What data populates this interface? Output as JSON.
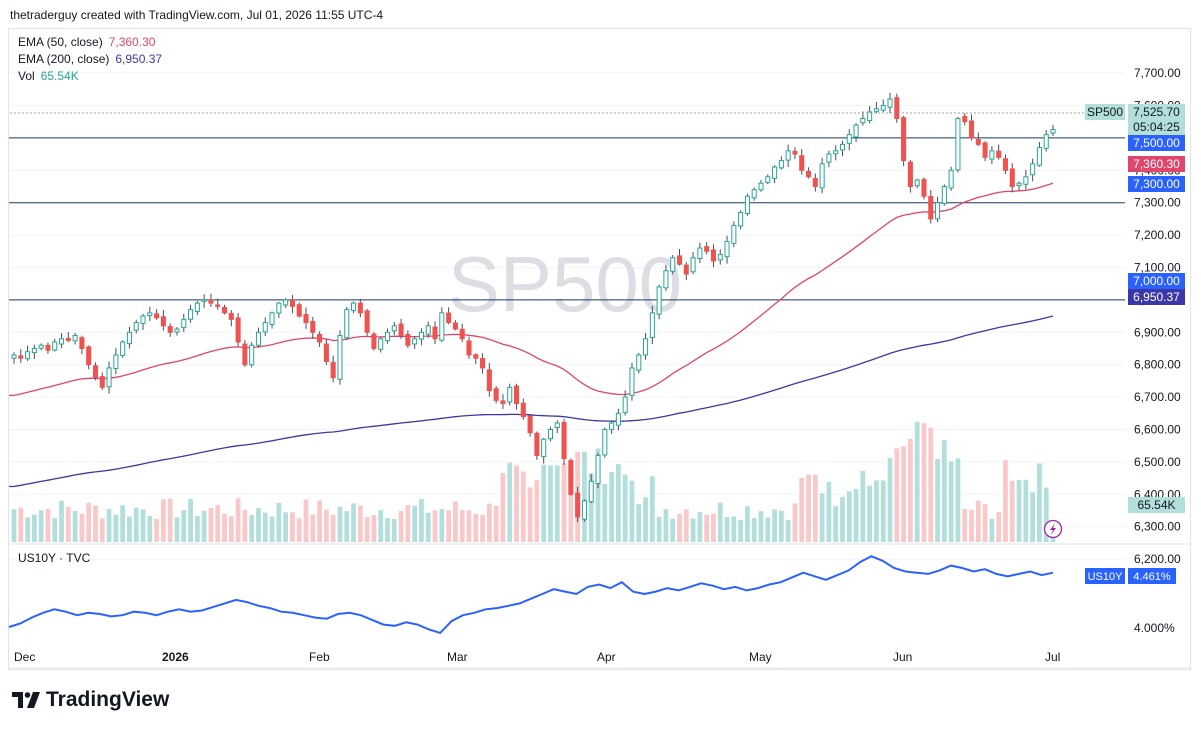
{
  "header": {
    "credit": "thetraderguy created with TradingView.com, Jul 01, 2026 11:55 UTC-4"
  },
  "legend": {
    "ema50": {
      "label": "EMA (50, close)",
      "value": "7,360.30",
      "color": "#e0456b"
    },
    "ema200": {
      "label": "EMA (200, close)",
      "value": "6,950.37",
      "color": "#3c37a8"
    },
    "vol": {
      "label": "Vol",
      "value": "65.54K",
      "color": "#26a69a"
    }
  },
  "watermark": "SP500",
  "lower_pane": {
    "title": "US10Y · TVC",
    "symbol": "US10Y",
    "value": "4.461%",
    "axis_label": "4.000%"
  },
  "price_badges": {
    "symbol": "SP500",
    "last": "7,525.70",
    "countdown": "05:04:25",
    "level_7500": "7,500.00",
    "ema50": "7,360.30",
    "level_7300": "7,300.00",
    "level_7000": "7,000.00",
    "ema200": "6,950.37",
    "volume": "65.54K"
  },
  "logo_text": "TradingView",
  "colors": {
    "up": "#26a69a",
    "down": "#ef5350",
    "ema50": "#e0456b",
    "ema200": "#3c37a8",
    "hline": "#1e3a5f",
    "us10y": "#2962ff"
  },
  "chart_data": [
    {
      "type": "candlestick",
      "title": "SP500",
      "x_tick_labels": [
        "Dec",
        "2026",
        "Feb",
        "Mar",
        "Apr",
        "May",
        "Jun",
        "Jul"
      ],
      "y_tick_labels": [
        "7,700.00",
        "7,600.00",
        "7,500.00",
        "7,400.00",
        "7,300.00",
        "7,200.00",
        "7,100.00",
        "7,000.00",
        "6,900.00",
        "6,800.00",
        "6,700.00",
        "6,600.00",
        "6,500.00",
        "6,400.00",
        "6,300.00",
        "6,200.00"
      ],
      "ylim": [
        6200,
        7750
      ],
      "horizontal_levels": [
        7500,
        7300,
        7000
      ],
      "closes": [
        6830,
        6820,
        6840,
        6850,
        6860,
        6845,
        6870,
        6880,
        6875,
        6890,
        6850,
        6800,
        6760,
        6730,
        6790,
        6830,
        6870,
        6900,
        6930,
        6950,
        6960,
        6945,
        6920,
        6900,
        6910,
        6940,
        6970,
        6990,
        7000,
        6990,
        6980,
        6960,
        6940,
        6870,
        6800,
        6860,
        6900,
        6930,
        6960,
        6990,
        7000,
        6980,
        6950,
        6930,
        6900,
        6870,
        6810,
        6760,
        6890,
        6970,
        6990,
        6960,
        6900,
        6850,
        6880,
        6900,
        6920,
        6890,
        6860,
        6880,
        6900,
        6920,
        6880,
        6960,
        6930,
        6910,
        6880,
        6830,
        6820,
        6790,
        6720,
        6690,
        6680,
        6730,
        6680,
        6640,
        6590,
        6520,
        6570,
        6600,
        6620,
        6510,
        6400,
        6330,
        6380,
        6440,
        6520,
        6600,
        6620,
        6650,
        6700,
        6790,
        6830,
        6880,
        6960,
        7040,
        7090,
        7130,
        7110,
        7080,
        7130,
        7160,
        7150,
        7120,
        7140,
        7180,
        7230,
        7270,
        7320,
        7340,
        7360,
        7380,
        7410,
        7430,
        7460,
        7450,
        7400,
        7380,
        7350,
        7420,
        7450,
        7460,
        7480,
        7510,
        7540,
        7560,
        7580,
        7590,
        7600,
        7620,
        7560,
        7430,
        7350,
        7370,
        7320,
        7250,
        7300,
        7350,
        7400,
        7560,
        7550,
        7500,
        7480,
        7440,
        7460,
        7440,
        7400,
        7350,
        7360,
        7380,
        7420,
        7470,
        7510,
        7526
      ],
      "ema50_end": 7360.3,
      "ema200_end": 6950.37,
      "volume_last": "65.54K"
    },
    {
      "type": "line",
      "title": "US10Y · TVC",
      "series": [
        {
          "name": "US10Y",
          "values": [
            4.0,
            4.03,
            4.08,
            4.12,
            4.15,
            4.13,
            4.1,
            4.12,
            4.11,
            4.09,
            4.1,
            4.13,
            4.12,
            4.1,
            4.13,
            4.15,
            4.13,
            4.14,
            4.17,
            4.2,
            4.23,
            4.21,
            4.18,
            4.16,
            4.13,
            4.12,
            4.1,
            4.08,
            4.07,
            4.11,
            4.12,
            4.1,
            4.06,
            4.02,
            4.01,
            4.04,
            4.02,
            3.98,
            3.95,
            4.05,
            4.1,
            4.12,
            4.15,
            4.16,
            4.18,
            4.2,
            4.24,
            4.28,
            4.32,
            4.3,
            4.28,
            4.34,
            4.36,
            4.33,
            4.38,
            4.3,
            4.28,
            4.3,
            4.33,
            4.31,
            4.34,
            4.37,
            4.35,
            4.32,
            4.34,
            4.31,
            4.33,
            4.36,
            4.38,
            4.42,
            4.46,
            4.43,
            4.4,
            4.44,
            4.48,
            4.55,
            4.6,
            4.56,
            4.5,
            4.47,
            4.46,
            4.45,
            4.48,
            4.52,
            4.5,
            4.47,
            4.49,
            4.45,
            4.43,
            4.45,
            4.47,
            4.44,
            4.46
          ]
        }
      ],
      "latest": 4.461
    }
  ]
}
